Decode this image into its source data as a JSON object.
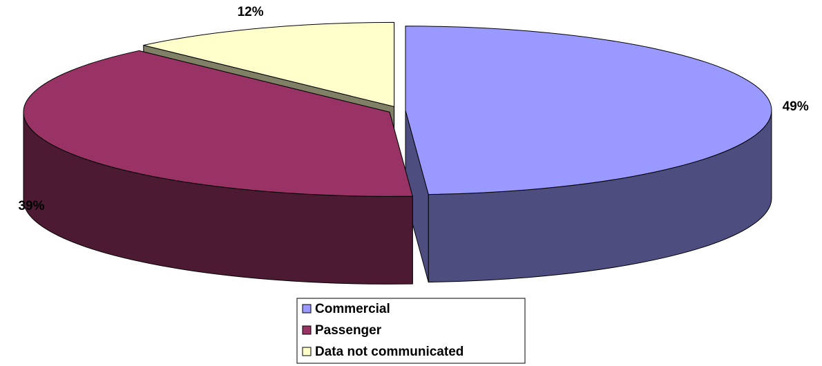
{
  "chart_data": {
    "type": "pie3d",
    "categories": [
      "Commercial",
      "Passenger",
      "Data not communicated"
    ],
    "values": [
      49,
      39,
      12
    ],
    "value_labels": [
      "49%",
      "39%",
      "12%"
    ],
    "colors": [
      "#9999ff",
      "#993366",
      "#ffffcc"
    ],
    "legend": "bottom"
  }
}
